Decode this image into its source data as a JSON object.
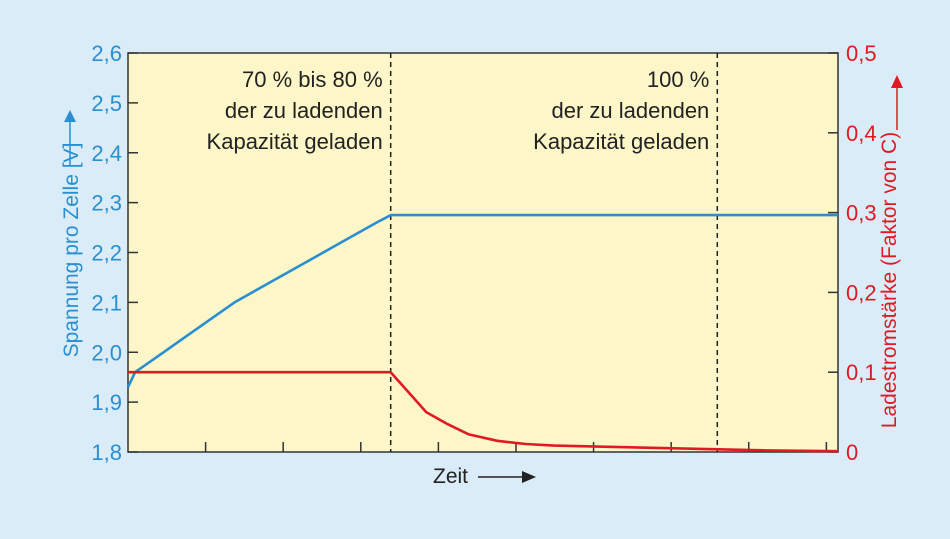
{
  "chart_data": {
    "type": "line",
    "title": "",
    "xlabel": "Zeit",
    "ylabel_left": "Spannung pro Zelle [V]",
    "ylabel_right": "Ladestromstärke (Faktor von C)",
    "left_axis": {
      "min": 1.8,
      "max": 2.6,
      "ticks": [
        "1,8",
        "1,9",
        "2,0",
        "2,1",
        "2,2",
        "2,3",
        "2,4",
        "2,5",
        "2,6"
      ]
    },
    "right_axis": {
      "min": 0,
      "max": 0.5,
      "ticks": [
        "0",
        "0,1",
        "0,2",
        "0,3",
        "0,4",
        "0,5"
      ]
    },
    "x_range": [
      0,
      1
    ],
    "x_tick_count": 9,
    "phase_markers": [
      0.37,
      0.83
    ],
    "annotations": [
      {
        "lines": [
          "70 % bis 80 %",
          "der zu ladenden",
          "Kapazität geladen"
        ],
        "x_end": 0.37
      },
      {
        "lines": [
          "100 %",
          "der zu ladenden",
          "Kapazität geladen"
        ],
        "x_end": 0.83
      }
    ],
    "series": [
      {
        "axis": "left",
        "color": "#2a8fd0",
        "x": [
          0,
          0.01,
          0.05,
          0.1,
          0.15,
          0.2,
          0.25,
          0.3,
          0.35,
          0.37,
          0.5,
          0.7,
          0.9,
          1.0
        ],
        "y": [
          1.93,
          1.96,
          2.0,
          2.05,
          2.1,
          2.14,
          2.18,
          2.22,
          2.26,
          2.275,
          2.275,
          2.275,
          2.275,
          2.275
        ]
      },
      {
        "axis": "right",
        "color": "#e01a22",
        "x": [
          0,
          0.37,
          0.38,
          0.4,
          0.42,
          0.45,
          0.48,
          0.52,
          0.56,
          0.6,
          0.7,
          0.8,
          0.9,
          1.0
        ],
        "y": [
          0.1,
          0.1,
          0.09,
          0.07,
          0.05,
          0.035,
          0.022,
          0.014,
          0.01,
          0.008,
          0.006,
          0.004,
          0.002,
          0.001
        ]
      }
    ],
    "colors": {
      "plot_background": "#fcf6c8",
      "left_axis": "#2a8fd0",
      "right_axis": "#e01a22",
      "axis": "#333333",
      "page_background": "#d9ecf8"
    }
  }
}
